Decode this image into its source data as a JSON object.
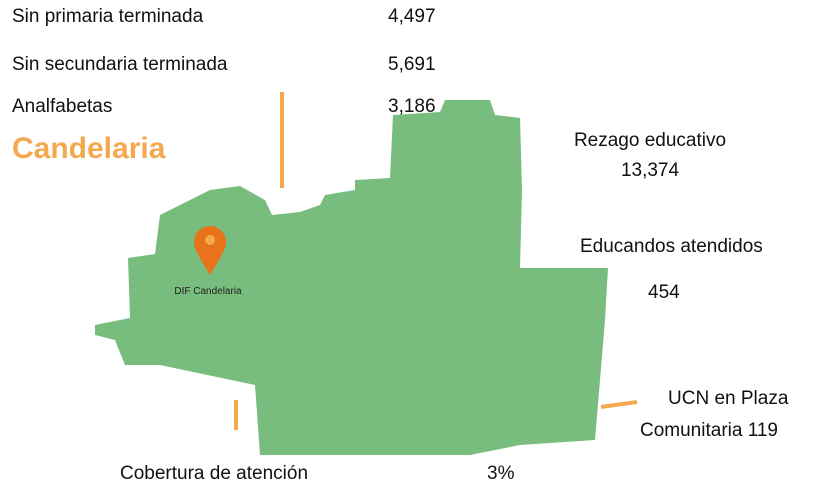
{
  "stats": [
    {
      "label": "Sin primaria terminada",
      "value": "4,497"
    },
    {
      "label": "Sin secundaria terminada",
      "value": "5,691"
    },
    {
      "label": "Analfabetas",
      "value": "3,186"
    }
  ],
  "municipality": "Candelaria",
  "rezago": {
    "label": "Rezago educativo",
    "value": "13,374"
  },
  "educandos": {
    "label": "Educandos atendidos",
    "value": "454"
  },
  "ucn": {
    "lines": [
      "UCN en Plaza",
      "Comunitaria 119"
    ]
  },
  "cobertura": {
    "label": "Cobertura de atención",
    "value": "3%"
  },
  "pin": {
    "label": "DIF Candelaria"
  }
}
